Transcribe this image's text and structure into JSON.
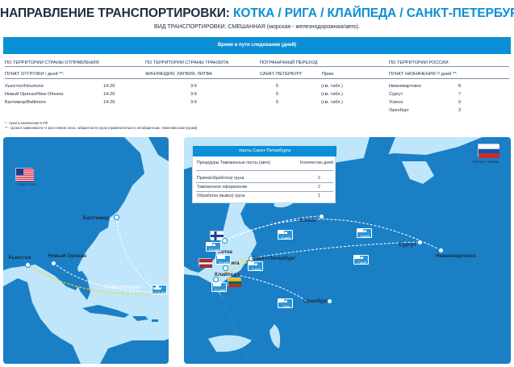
{
  "header": {
    "title_prefix": "НАПРАВЛЕНИЕ ТРАНСПОРТИРОВКИ:",
    "title_routes": "КОТКА / РИГА / КЛАЙПЕДА / САНКТ-ПЕТЕРБУРГ",
    "subtitle": "ВИД ТРАНСПОРТИРОВКИ: СМЕШАННАЯ (морская - железнодорожная/авто)."
  },
  "transit_table": {
    "band_title": "Время в пути следования (дней)",
    "groups": {
      "departure_country": "ПО ТЕРРИТОРИИ СТРАНЫ ОТПРАВЛЕНИЯ:",
      "transit_country": "ПО ТЕРРИТОРИИ СТРАНЫ ТРАНЗИТА",
      "border_crossing": "ПОГРАНИЧНЫЙ ПЕРЕХОД",
      "russia": "ПО ТЕРРИТОРИИ РОССИИ:"
    },
    "columns": {
      "shipping_point": "ПУНКТ ОТГРУЗКИ / дней **:",
      "transit_countries": "ФИНЛЯНДИЯ, ЛАТВИЯ, ЛИТВА",
      "border_point": "САНКТ-ПЕТЕРБУРГ",
      "note_col": "Прим.",
      "destination": "ПУНКТ НАЗНАЧЕНИЯ */ дней **:"
    },
    "rows": [
      {
        "origin": "Хьюстон/Houstone",
        "origin_days": "14-26",
        "transit_days": "3-5",
        "border_days": "5",
        "note": "(см. табл.)",
        "destination": "Нижневартовск",
        "destination_days": "8"
      },
      {
        "origin": "Новый Орлеан/New Orleans",
        "origin_days": "14-26",
        "transit_days": "3-5",
        "border_days": "5",
        "note": "(см. табл.)",
        "destination": "Сургут",
        "destination_days": "7"
      },
      {
        "origin": "Балтимор/Baltimore",
        "origin_days": "14-26",
        "transit_days": "3-5",
        "border_days": "5",
        "note": "(см. табл.)",
        "destination": "Усинск",
        "destination_days": "9"
      },
      {
        "origin": "",
        "origin_days": "",
        "transit_days": "",
        "border_days": "",
        "note": "",
        "destination": "Оренбург",
        "destination_days": "3"
      }
    ],
    "footnotes": [
      "* - пункты назначения в РФ",
      "** - сроки в зависимости от расстояния, веса, габаритности груза (применительно к негабаритным, тяжеловесным грузам)"
    ]
  },
  "usa_map": {
    "flag_caption": "США / Usa",
    "cities": {
      "baltimore": "Балтимор",
      "houston": "Хьюстон",
      "new_orleans": "Новый Орлеан"
    },
    "route_label": "В Финляндию",
    "badge_text": "14-26 дней"
  },
  "russia_map": {
    "flag_caption": "Россия / Russia",
    "ports_table": {
      "title": "порты Санкт-Петербурга",
      "col_procedures": "Процедуры Таможенные посты (авто)",
      "col_days": "Количество дней",
      "rows": [
        {
          "label": "Прием(обработка) груза",
          "days": "2"
        },
        {
          "label": "Таможенное оформление",
          "days": "2"
        },
        {
          "label": "Обработка (вывоз) груза",
          "days": "1"
        }
      ]
    },
    "cities": {
      "usinsk": "Усинск",
      "kotka": "Котка",
      "saint_petersburg": "Санкт-Петербург",
      "riga": "Рига",
      "klaipeda": "Клайпеда",
      "surgut": "Сургут",
      "nizhnevartovsk": "Нижневартовск",
      "orenburg": "Оренбург"
    },
    "badges": {
      "kotka": "3-5 дней",
      "spb": "5 дней",
      "riga": "3-5 дней",
      "klaipeda": "3-5 дней",
      "usinsk": "9 дней",
      "surgut": "7 дней",
      "nizhnevartovsk": "8 дней",
      "orenburg": "3 дня"
    }
  },
  "colors": {
    "accent_blue": "#0b8fd6",
    "navy": "#1f2a44",
    "sea": "#bfe6fa",
    "land": "#1b7fc6",
    "route_yellow": "#ffd21a"
  }
}
